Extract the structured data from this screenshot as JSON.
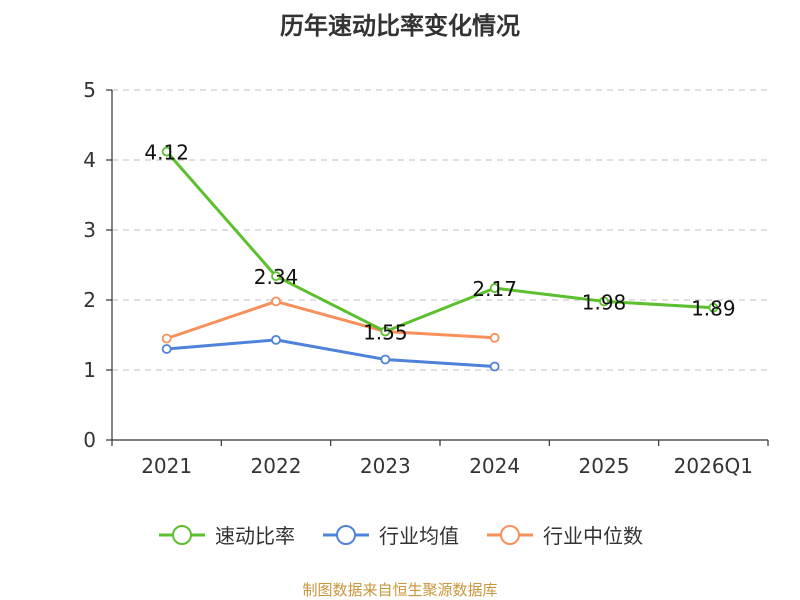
{
  "title": "历年速动比率变化情况",
  "source": "制图数据来自恒生聚源数据库",
  "chart_data": {
    "type": "line",
    "title": "历年速动比率变化情况",
    "categories": [
      "2021",
      "2022",
      "2023",
      "2024",
      "2025",
      "2026Q1"
    ],
    "ylim": [
      0,
      5
    ],
    "yticks": [
      0,
      1,
      2,
      3,
      4,
      5
    ],
    "grid": true,
    "legend_position": "bottom",
    "series": [
      {
        "name": "速动比率",
        "color": "#5cc02e",
        "values": [
          4.12,
          2.34,
          1.55,
          2.17,
          1.98,
          1.89
        ],
        "labels": [
          "4.12",
          "2.34",
          "1.55",
          "2.17",
          "1.98",
          "1.89"
        ]
      },
      {
        "name": "行业均值",
        "color": "#4f82d9",
        "values": [
          1.3,
          1.43,
          1.15,
          1.05,
          null,
          null
        ]
      },
      {
        "name": "行业中位数",
        "color": "#f7905a",
        "values": [
          1.45,
          1.98,
          1.55,
          1.46,
          null,
          null
        ]
      }
    ]
  }
}
